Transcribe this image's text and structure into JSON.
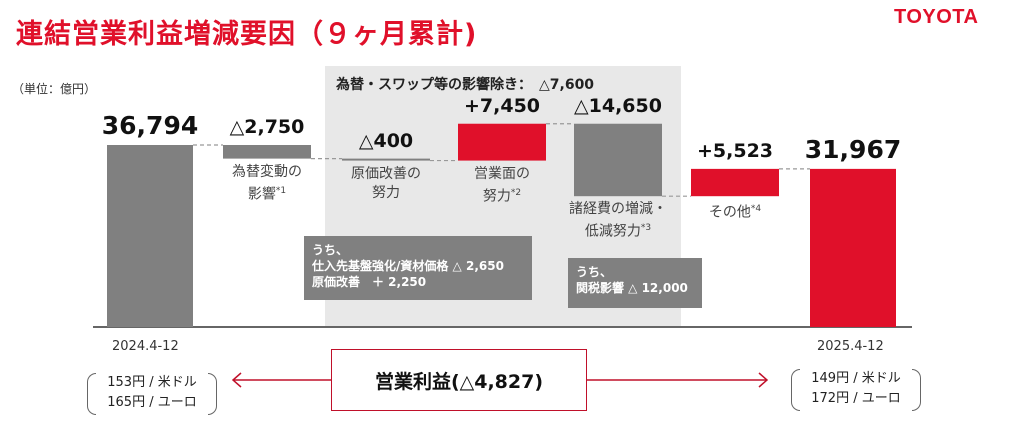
{
  "header": {
    "title": "連結営業利益増減要因（９ヶ月累計)",
    "logo": "TOYOTA",
    "unit": "（単位：億円）"
  },
  "shade_label": "為替・スワップ等の影響除き：　△7,600",
  "chart_data": {
    "type": "waterfall",
    "ylim": [
      0,
      37500
    ],
    "steps": [
      {
        "kind": "total",
        "value": 36794,
        "label": "36,794",
        "category": "",
        "note_ref": ""
      },
      {
        "kind": "delta",
        "value": -2750,
        "label": "△2,750",
        "category": "為替変動の\n影響",
        "note_ref": "*1"
      },
      {
        "kind": "delta",
        "value": -400,
        "label": "△400",
        "category": "原価改善の\n努力",
        "note_ref": ""
      },
      {
        "kind": "delta",
        "value": 7450,
        "label": "+7,450",
        "category": "営業面の\n努力",
        "note_ref": "*2"
      },
      {
        "kind": "delta",
        "value": -14650,
        "label": "△14,650",
        "category": "諸経費の増減・\n低減努力",
        "note_ref": "*3"
      },
      {
        "kind": "delta",
        "value": 5523,
        "label": "+5,523",
        "category": "その他",
        "note_ref": "*4"
      },
      {
        "kind": "total",
        "value": 31967,
        "label": "31,967",
        "category": "",
        "note_ref": ""
      }
    ],
    "colors": {
      "decrease": "#808080",
      "increase": "#e0102a",
      "total_start": "#808080",
      "total_end": "#e0102a"
    }
  },
  "notes": {
    "cost": [
      "うち、",
      "仕入先基盤強化/資材価格 △ 2,650",
      "原価改善　＋ 2,250"
    ],
    "expense": [
      "うち、",
      "関税影響 △ 12,000"
    ]
  },
  "footer": {
    "left_date": "2024.4-12",
    "right_date": "2025.4-12",
    "left_rates": [
      "153円 / 米ドル",
      "165円 / ユーロ"
    ],
    "right_rates": [
      "149円 / 米ドル",
      "172円 / ユーロ"
    ],
    "op_profit": "営業利益(△4,827)"
  }
}
